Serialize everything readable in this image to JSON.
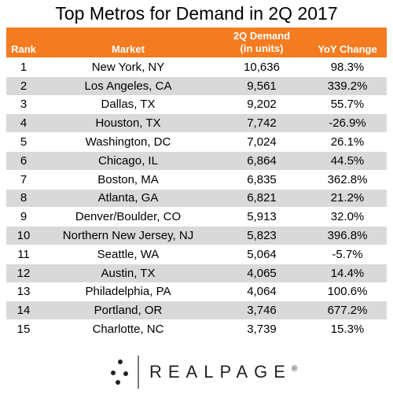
{
  "title": "Top Metros for Demand in 2Q 2017",
  "table": {
    "header": [
      "Rank",
      "Market",
      [
        "2Q Demand",
        "(in units)"
      ],
      "YoY Change"
    ],
    "rows": [
      [
        "1",
        "New York, NY",
        "10,636",
        "98.3%"
      ],
      [
        "2",
        "Los Angeles, CA",
        "9,561",
        "339.2%"
      ],
      [
        "3",
        "Dallas, TX",
        "9,202",
        "55.7%"
      ],
      [
        "4",
        "Houston, TX",
        "7,742",
        "-26.9%"
      ],
      [
        "5",
        "Washington, DC",
        "7,024",
        "26.1%"
      ],
      [
        "6",
        "Chicago, IL",
        "6,864",
        "44.5%"
      ],
      [
        "7",
        "Boston, MA",
        "6,835",
        "362.8%"
      ],
      [
        "8",
        "Atlanta, GA",
        "6,821",
        "21.2%"
      ],
      [
        "9",
        "Denver/Boulder, CO",
        "5,913",
        "32.0%"
      ],
      [
        "10",
        "Northern New Jersey, NJ",
        "5,823",
        "396.8%"
      ],
      [
        "11",
        "Seattle, WA",
        "5,064",
        "-5.7%"
      ],
      [
        "12",
        "Austin, TX",
        "4,065",
        "14.4%"
      ],
      [
        "13",
        "Philadelphia, PA",
        "4,064",
        "100.6%"
      ],
      [
        "14",
        "Portland, OR",
        "3,746",
        "677.2%"
      ],
      [
        "15",
        "Charlotte, NC",
        "3,739",
        "15.3%"
      ]
    ]
  },
  "logo": {
    "text": "REALPAGE",
    "mark": "®"
  }
}
